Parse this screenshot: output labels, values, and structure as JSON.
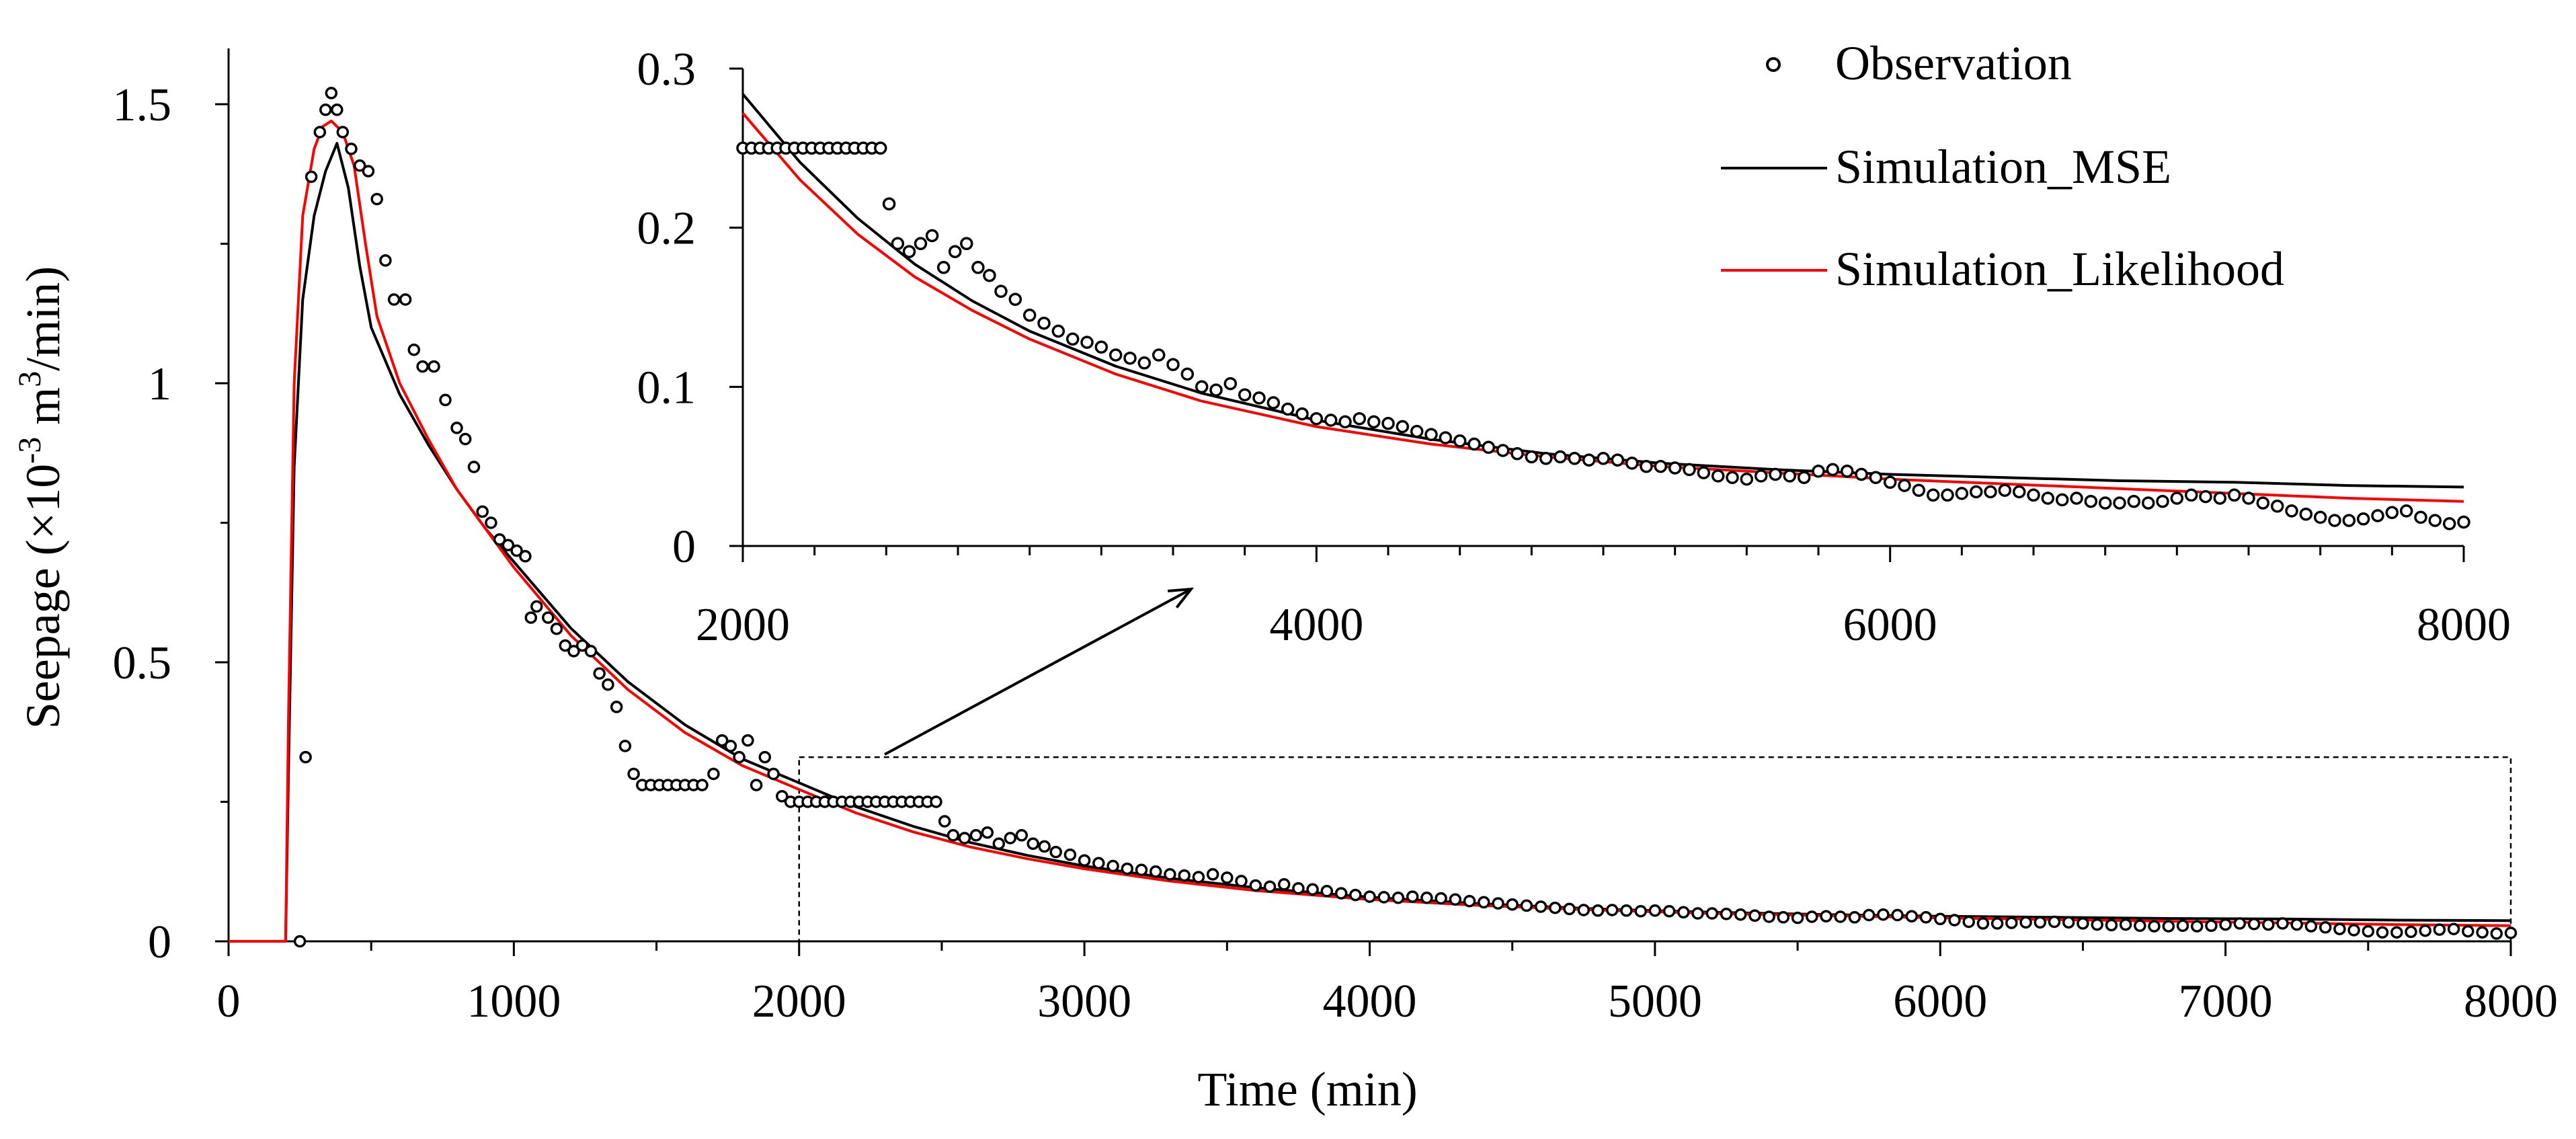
{
  "chart_data": {
    "type": "line",
    "main": {
      "xlabel": "Time (min)",
      "ylabel_prefix": "Seepage (",
      "ylabel_unit": "×10",
      "ylabel_exp1": "-3",
      "ylabel_mid": " m",
      "ylabel_exp2": "3",
      "ylabel_suffix": "/min)",
      "xlim": [
        0,
        8000
      ],
      "ylim": [
        0,
        1.6
      ],
      "xticks": [
        "0",
        "1000",
        "2000",
        "3000",
        "4000",
        "5000",
        "6000",
        "7000",
        "8000"
      ],
      "yticks": [
        "0",
        "0.5",
        "1",
        "1.5"
      ]
    },
    "inset": {
      "xlim": [
        2000,
        8000
      ],
      "ylim": [
        0,
        0.3
      ],
      "xticks": [
        "2000",
        "4000",
        "6000",
        "8000"
      ],
      "yticks": [
        "0",
        "0.1",
        "0.2",
        "0.3"
      ],
      "zoom_box": {
        "x": [
          2000,
          8000
        ],
        "y": [
          0,
          0.33
        ]
      }
    },
    "legend": {
      "position": "top-right",
      "entries": [
        "Observation",
        "Simulation_MSE",
        "Simulation_Likelihood"
      ]
    },
    "series": [
      {
        "name": "Simulation_MSE",
        "color": "#000000",
        "x": [
          0,
          200,
          210,
          230,
          260,
          300,
          340,
          380,
          420,
          460,
          500,
          600,
          700,
          800,
          900,
          1000,
          1200,
          1400,
          1600,
          1800,
          2000,
          2200,
          2400,
          2600,
          2800,
          3000,
          3300,
          3600,
          4000,
          4400,
          4800,
          5200,
          5600,
          6000,
          6400,
          6800,
          7200,
          7600,
          8000
        ],
        "values": [
          0,
          0,
          0.3,
          0.85,
          1.15,
          1.3,
          1.38,
          1.43,
          1.35,
          1.21,
          1.1,
          0.98,
          0.89,
          0.81,
          0.74,
          0.68,
          0.561,
          0.465,
          0.388,
          0.327,
          0.284,
          0.241,
          0.206,
          0.177,
          0.154,
          0.135,
          0.113,
          0.096,
          0.079,
          0.067,
          0.058,
          0.052,
          0.048,
          0.045,
          0.043,
          0.041,
          0.04,
          0.038,
          0.037
        ]
      },
      {
        "name": "Simulation_Likelihood",
        "color": "#ff0000",
        "x": [
          0,
          200,
          210,
          230,
          260,
          300,
          330,
          360,
          400,
          440,
          480,
          520,
          600,
          700,
          800,
          900,
          1000,
          1200,
          1400,
          1600,
          1800,
          2000,
          2200,
          2400,
          2600,
          2800,
          3000,
          3300,
          3600,
          4000,
          4400,
          4800,
          5200,
          5600,
          6000,
          6400,
          6800,
          7200,
          7600,
          8000
        ],
        "values": [
          0,
          0,
          0.4,
          1.0,
          1.3,
          1.42,
          1.46,
          1.47,
          1.45,
          1.39,
          1.25,
          1.12,
          1.0,
          0.9,
          0.81,
          0.74,
          0.67,
          0.548,
          0.451,
          0.374,
          0.315,
          0.272,
          0.23,
          0.196,
          0.169,
          0.148,
          0.13,
          0.108,
          0.091,
          0.075,
          0.064,
          0.056,
          0.05,
          0.046,
          0.042,
          0.039,
          0.036,
          0.033,
          0.03,
          0.028
        ]
      },
      {
        "name": "Observation",
        "color": "#000000",
        "marker": "open-circle",
        "x": [
          250,
          270,
          290,
          320,
          340,
          360,
          380,
          400,
          430,
          460,
          490,
          520,
          550,
          580,
          620,
          650,
          680,
          720,
          760,
          800,
          830,
          860,
          890,
          920,
          950,
          980,
          1010,
          1040,
          1060,
          1080,
          1120,
          1150,
          1180,
          1210,
          1240,
          1270,
          1300,
          1330,
          1360,
          1390,
          1420,
          1450,
          1480,
          1510,
          1540,
          1570,
          1600,
          1630,
          1660,
          1700,
          1730,
          1760,
          1790,
          1820,
          1850,
          1880,
          1910,
          1940,
          1970,
          2000,
          2030,
          2060,
          2090,
          2120,
          2150,
          2180,
          2210,
          2240,
          2270,
          2300,
          2330,
          2360,
          2390,
          2420,
          2450,
          2480,
          2510,
          2540,
          2580,
          2620,
          2660,
          2700,
          2740,
          2780,
          2820,
          2860,
          2900,
          2950,
          3000,
          3050,
          3100,
          3150,
          3200,
          3250,
          3300,
          3350,
          3400,
          3450,
          3500,
          3550,
          3600,
          3650,
          3700,
          3750,
          3800,
          3850,
          3900,
          3950,
          4000,
          4050,
          4100,
          4150,
          4200,
          4250,
          4300,
          4350,
          4400,
          4450,
          4500,
          4550,
          4600,
          4650,
          4700,
          4750,
          4800,
          4850,
          4900,
          4950,
          5000,
          5050,
          5100,
          5150,
          5200,
          5250,
          5300,
          5350,
          5400,
          5450,
          5500,
          5550,
          5600,
          5650,
          5700,
          5750,
          5800,
          5850,
          5900,
          5950,
          6000,
          6050,
          6100,
          6150,
          6200,
          6250,
          6300,
          6350,
          6400,
          6450,
          6500,
          6550,
          6600,
          6650,
          6700,
          6750,
          6800,
          6850,
          6900,
          6950,
          7000,
          7050,
          7100,
          7150,
          7200,
          7250,
          7300,
          7350,
          7400,
          7450,
          7500,
          7550,
          7600,
          7650,
          7700,
          7750,
          7800,
          7850,
          7900,
          7950,
          8000
        ],
        "values": [
          0.0,
          0.33,
          1.37,
          1.45,
          1.49,
          1.52,
          1.49,
          1.45,
          1.42,
          1.39,
          1.38,
          1.33,
          1.22,
          1.15,
          1.15,
          1.06,
          1.03,
          1.03,
          0.97,
          0.92,
          0.9,
          0.85,
          0.77,
          0.75,
          0.72,
          0.71,
          0.7,
          0.69,
          0.58,
          0.6,
          0.58,
          0.56,
          0.53,
          0.52,
          0.53,
          0.52,
          0.48,
          0.46,
          0.42,
          0.35,
          0.3,
          0.28,
          0.28,
          0.28,
          0.28,
          0.28,
          0.28,
          0.28,
          0.28,
          0.3,
          0.36,
          0.35,
          0.33,
          0.36,
          0.28,
          0.33,
          0.3,
          0.26,
          0.25,
          0.25,
          0.25,
          0.25,
          0.25,
          0.25,
          0.25,
          0.25,
          0.25,
          0.25,
          0.25,
          0.25,
          0.25,
          0.25,
          0.25,
          0.25,
          0.25,
          0.25,
          0.215,
          0.19,
          0.185,
          0.19,
          0.195,
          0.175,
          0.185,
          0.19,
          0.175,
          0.17,
          0.16,
          0.155,
          0.145,
          0.14,
          0.135,
          0.13,
          0.128,
          0.125,
          0.12,
          0.118,
          0.115,
          0.12,
          0.114,
          0.108,
          0.1,
          0.098,
          0.102,
          0.095,
          0.093,
          0.09,
          0.086,
          0.083,
          0.08,
          0.079,
          0.078,
          0.08,
          0.078,
          0.077,
          0.075,
          0.072,
          0.07,
          0.068,
          0.066,
          0.064,
          0.062,
          0.06,
          0.058,
          0.056,
          0.055,
          0.056,
          0.055,
          0.054,
          0.055,
          0.054,
          0.052,
          0.05,
          0.05,
          0.049,
          0.048,
          0.046,
          0.044,
          0.043,
          0.042,
          0.044,
          0.045,
          0.044,
          0.043,
          0.047,
          0.048,
          0.047,
          0.045,
          0.043,
          0.04,
          0.038,
          0.035,
          0.032,
          0.032,
          0.033,
          0.034,
          0.034,
          0.035,
          0.034,
          0.032,
          0.03,
          0.029,
          0.03,
          0.028,
          0.027,
          0.027,
          0.028,
          0.027,
          0.028,
          0.03,
          0.032,
          0.031,
          0.03,
          0.032,
          0.03,
          0.027,
          0.025,
          0.022,
          0.02,
          0.018,
          0.016,
          0.016,
          0.017,
          0.019,
          0.021,
          0.022,
          0.018,
          0.016,
          0.014,
          0.015
        ]
      }
    ]
  }
}
